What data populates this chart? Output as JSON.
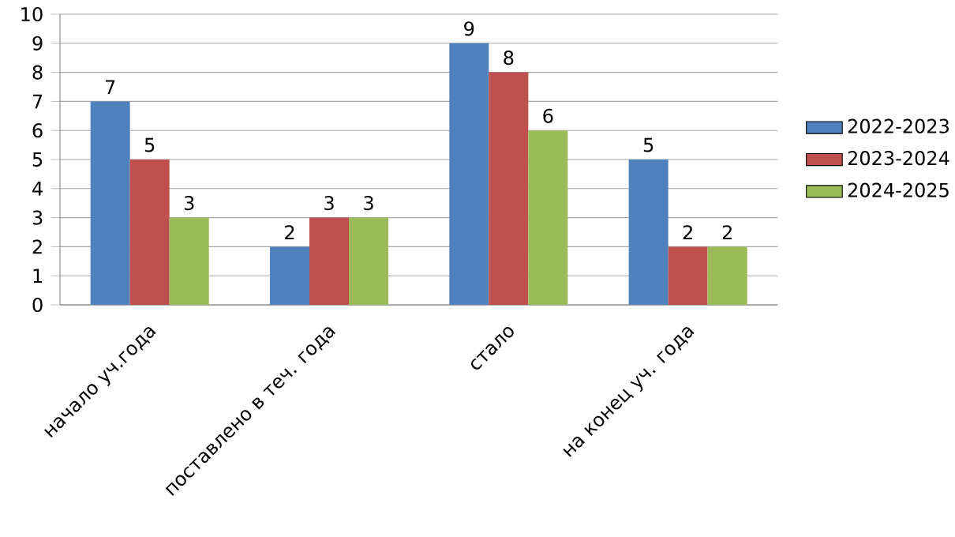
{
  "chart_data": {
    "type": "bar",
    "categories": [
      "начало уч.года",
      "поставлено в теч. года",
      "стало",
      "на конец уч. года"
    ],
    "series": [
      {
        "name": "2022-2023",
        "color": "#4f81bd",
        "values": [
          7,
          2,
          9,
          5
        ]
      },
      {
        "name": "2023-2024",
        "color": "#c0504d",
        "values": [
          5,
          3,
          8,
          2
        ]
      },
      {
        "name": "2024-2025",
        "color": "#9bbb59",
        "values": [
          3,
          3,
          6,
          2
        ]
      }
    ],
    "ylim": [
      0,
      10
    ],
    "yticks": [
      0,
      1,
      2,
      3,
      4,
      5,
      6,
      7,
      8,
      9,
      10
    ],
    "grid": "y",
    "legend": "right",
    "data_labels": true
  }
}
